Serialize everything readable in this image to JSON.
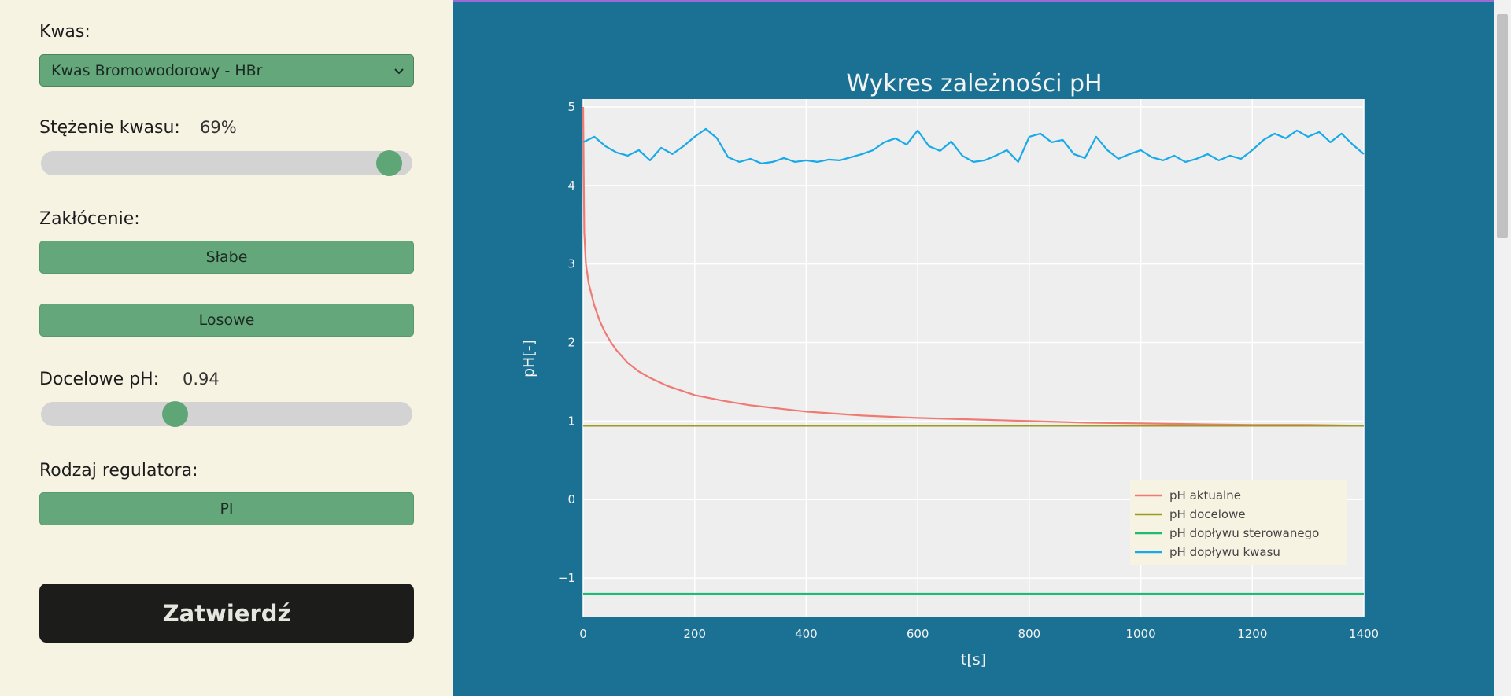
{
  "controls": {
    "acid_label": "Kwas:",
    "acid_selected": "Kwas Bromowodorowy - HBr",
    "concentration_label": "Stężenie kwasu:",
    "concentration_value": "69%",
    "concentration_level": 0.97,
    "disturbance_label": "Zakłócenie:",
    "disturbance_btn1": "Słabe",
    "disturbance_btn2": "Losowe",
    "target_ph_label": "Docelowe pH:",
    "target_ph_value": "0.94",
    "target_ph_level": 0.35,
    "regulator_label": "Rodzaj regulatora:",
    "regulator_btn": "PI",
    "submit_label": "Zatwierdź"
  },
  "colors": {
    "sidebar_bg": "#f7f3e3",
    "main_bg": "#1b7193",
    "button_green": "#63a77b",
    "submit_dark": "#1c1d1a"
  },
  "chart_data": {
    "type": "line",
    "title": "Wykres zależności pH",
    "xlabel": "t[s]",
    "ylabel": "pH[-]",
    "xlim": [
      0,
      1400
    ],
    "ylim": [
      -1.5,
      5.1
    ],
    "xticks": [
      0,
      200,
      400,
      600,
      800,
      1000,
      1200,
      1400
    ],
    "yticks": [
      -1,
      0,
      1,
      2,
      3,
      4,
      5
    ],
    "ytick_labels": [
      "−1",
      "0",
      "1",
      "2",
      "3",
      "4",
      "5"
    ],
    "grid": true,
    "legend_position": "bottom-right",
    "series": [
      {
        "name": "pH aktualne",
        "color": "#ef7a74",
        "x": [
          0,
          2,
          5,
          10,
          20,
          30,
          40,
          50,
          60,
          80,
          100,
          120,
          150,
          200,
          250,
          300,
          400,
          500,
          600,
          700,
          800,
          900,
          1000,
          1100,
          1200,
          1300,
          1400
        ],
        "y": [
          5.0,
          3.4,
          3.0,
          2.75,
          2.47,
          2.27,
          2.12,
          2.0,
          1.9,
          1.74,
          1.63,
          1.55,
          1.45,
          1.33,
          1.26,
          1.2,
          1.12,
          1.07,
          1.04,
          1.02,
          1.0,
          0.98,
          0.97,
          0.96,
          0.95,
          0.95,
          0.94
        ]
      },
      {
        "name": "pH docelowe",
        "color": "#9a9a1e",
        "x": [
          0,
          1400
        ],
        "y": [
          0.94,
          0.94
        ]
      },
      {
        "name": "pH dopływu sterowanego",
        "color": "#1dbb77",
        "x": [
          0,
          1400
        ],
        "y": [
          -1.2,
          -1.2
        ]
      },
      {
        "name": "pH dopływu kwasu",
        "color": "#18a9e8",
        "x": [
          0,
          20,
          40,
          60,
          80,
          100,
          120,
          140,
          160,
          180,
          200,
          220,
          240,
          260,
          280,
          300,
          320,
          340,
          360,
          380,
          400,
          420,
          440,
          460,
          480,
          500,
          520,
          540,
          560,
          580,
          600,
          620,
          640,
          660,
          680,
          700,
          720,
          740,
          760,
          780,
          800,
          820,
          840,
          860,
          880,
          900,
          920,
          940,
          960,
          980,
          1000,
          1020,
          1040,
          1060,
          1080,
          1100,
          1120,
          1140,
          1160,
          1180,
          1200,
          1220,
          1240,
          1260,
          1280,
          1300,
          1320,
          1340,
          1360,
          1380,
          1400
        ],
        "y": [
          4.55,
          4.62,
          4.5,
          4.42,
          4.38,
          4.45,
          4.32,
          4.48,
          4.4,
          4.5,
          4.62,
          4.72,
          4.6,
          4.36,
          4.3,
          4.34,
          4.28,
          4.3,
          4.35,
          4.3,
          4.32,
          4.3,
          4.33,
          4.32,
          4.36,
          4.4,
          4.45,
          4.55,
          4.6,
          4.52,
          4.7,
          4.5,
          4.44,
          4.56,
          4.38,
          4.3,
          4.32,
          4.38,
          4.45,
          4.3,
          4.62,
          4.66,
          4.55,
          4.58,
          4.4,
          4.35,
          4.62,
          4.45,
          4.34,
          4.4,
          4.45,
          4.36,
          4.32,
          4.38,
          4.3,
          4.34,
          4.4,
          4.32,
          4.38,
          4.34,
          4.45,
          4.58,
          4.66,
          4.6,
          4.7,
          4.62,
          4.68,
          4.55,
          4.66,
          4.52,
          4.4
        ]
      }
    ]
  }
}
